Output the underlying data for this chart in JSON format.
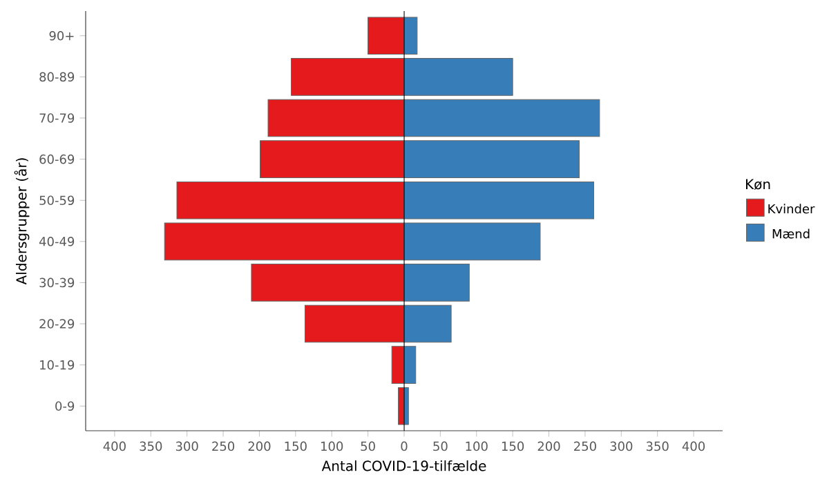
{
  "chart_data": {
    "type": "bar",
    "orientation": "horizontal",
    "stacked": true,
    "xlabel": "Antal COVID-19-tilfælde",
    "ylabel": "Aldersgrupper (år)",
    "legend_title": "Køn",
    "categories": [
      "90+",
      "80-89",
      "70-79",
      "60-69",
      "50-59",
      "40-49",
      "30-39",
      "20-29",
      "10-19",
      "0-9"
    ],
    "series": [
      {
        "name": "Kvinder",
        "color": "#e41a1c",
        "values": [
          -50,
          -156,
          -188,
          -199,
          -314,
          -331,
          -211,
          -137,
          -17,
          -8
        ]
      },
      {
        "name": "Mænd",
        "color": "#377eb8",
        "values": [
          18,
          150,
          270,
          242,
          262,
          188,
          90,
          65,
          16,
          6
        ]
      }
    ],
    "xlim": [
      -440,
      440
    ],
    "xticks": [
      {
        "value": -400,
        "label": "400"
      },
      {
        "value": -350,
        "label": "350"
      },
      {
        "value": -300,
        "label": "300"
      },
      {
        "value": -250,
        "label": "250"
      },
      {
        "value": -200,
        "label": "200"
      },
      {
        "value": -150,
        "label": "150"
      },
      {
        "value": -100,
        "label": "100"
      },
      {
        "value": -50,
        "label": "50"
      },
      0,
      50,
      100,
      150,
      200,
      250,
      300,
      350,
      400
    ],
    "ref_lines": [
      {
        "axis": "x",
        "value": 0,
        "color": "#000000"
      }
    ],
    "grid": false,
    "legend": "right"
  }
}
